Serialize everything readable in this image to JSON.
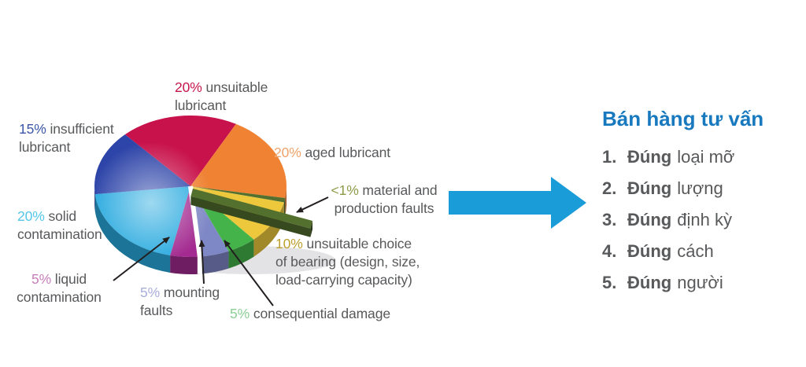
{
  "chart_data": {
    "type": "pie",
    "style": "3d-exploded",
    "unit": "%",
    "direction": "clockwise",
    "start_angle_deg": -133,
    "slices": [
      {
        "id": "unsuitable-lubricant",
        "pct_label": "20%",
        "value": 20,
        "label": "unsuitable lubricant",
        "text_lines": [
          "unsuitable",
          "lubricant"
        ],
        "color": "#c8124b",
        "pct_color": "#c5164b",
        "exploded": false
      },
      {
        "id": "aged-lubricant",
        "pct_label": "20%",
        "value": 20,
        "label": "aged lubricant",
        "text_lines": [
          "aged lubricant"
        ],
        "color": "#ef8233",
        "pct_color": "#efa36b",
        "exploded": false
      },
      {
        "id": "material-production-faults",
        "pct_label": "<1%",
        "value": 1,
        "label": "material and production faults",
        "text_lines": [
          "material and",
          "production faults"
        ],
        "color": "#53702f",
        "pct_color": "#8d9b49",
        "exploded": true
      },
      {
        "id": "unsuitable-bearing-choice",
        "pct_label": "10%",
        "value": 10,
        "label": "unsuitable choice of bearing (design, size, load-carrying capacity)",
        "text_lines": [
          "unsuitable choice",
          "of bearing (design, size,",
          "load-carrying capacity)"
        ],
        "color": "#edc83d",
        "pct_color": "#bda02e",
        "exploded": false
      },
      {
        "id": "consequential-damage",
        "pct_label": "5%",
        "value": 5,
        "label": "consequential damage",
        "text_lines": [
          "consequential damage"
        ],
        "color": "#44b44a",
        "pct_color": "#8ccf96",
        "exploded": false
      },
      {
        "id": "mounting-faults",
        "pct_label": "5%",
        "value": 5,
        "label": "mounting faults",
        "text_lines": [
          "mounting",
          "faults"
        ],
        "color": "#7f88c6",
        "pct_color": "#a9aedb",
        "exploded": false
      },
      {
        "id": "liquid-contamination",
        "pct_label": "5%",
        "value": 5,
        "label": "liquid contamination",
        "text_lines": [
          "liquid",
          "contamination"
        ],
        "color": "#a32a90",
        "pct_color": "#c77fbb",
        "exploded": false
      },
      {
        "id": "solid-contamination",
        "pct_label": "20%",
        "value": 20,
        "label": "solid contamination",
        "text_lines": [
          "solid",
          "contamination"
        ],
        "color": "#29aadf",
        "pct_color": "#55c6ea",
        "exploded": false
      },
      {
        "id": "insufficient-lubricant",
        "pct_label": "15%",
        "value": 15,
        "label": "insufficient lubricant",
        "text_lines": [
          "insufficient",
          "lubricant"
        ],
        "color": "#2d44a8",
        "pct_color": "#3c56a8",
        "exploded": false
      }
    ],
    "gap_after": "mounting-faults",
    "label_text_color": "#58595b",
    "leader_line_color": "#231f20",
    "shadow_color": "#d9dadc"
  },
  "flow_arrow": {
    "color": "#1a9cd8"
  },
  "panel": {
    "title": "Bán hàng tư vấn",
    "title_color": "#1879bf",
    "text_color": "#58595b",
    "items": [
      {
        "num": "1.",
        "bold": "Đúng",
        "rest": "loại mỡ"
      },
      {
        "num": "2.",
        "bold": "Đúng",
        "rest": "lượng"
      },
      {
        "num": "3.",
        "bold": "Đúng",
        "rest": "định kỳ"
      },
      {
        "num": "4.",
        "bold": "Đúng",
        "rest": "cách"
      },
      {
        "num": "5.",
        "bold": "Đúng",
        "rest": "người"
      }
    ]
  }
}
